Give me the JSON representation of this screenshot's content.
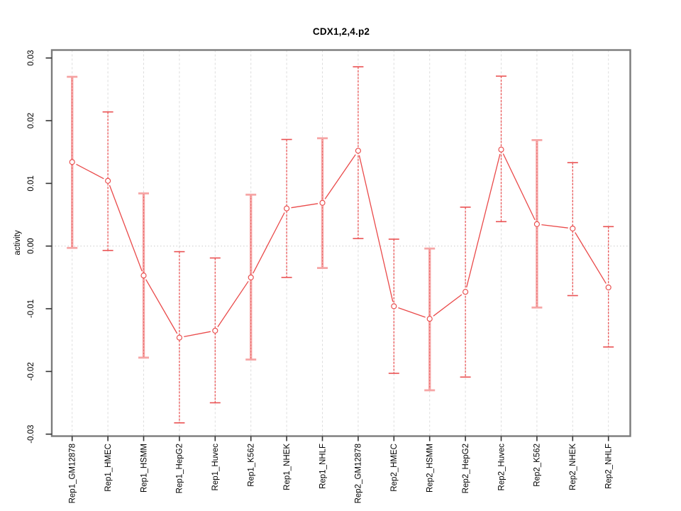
{
  "chart_data": {
    "type": "scatter",
    "title": "CDX1,2,4.p2",
    "xlabel": "",
    "ylabel": "activity",
    "ylim": [
      -0.03,
      0.03
    ],
    "ytick_values": [
      0.03,
      0.02,
      0.01,
      0,
      -0.01,
      -0.02,
      -0.03
    ],
    "ytick_labels": [
      "0.03",
      "0.02",
      "0.01",
      "0.00",
      "-0.01",
      "-0.02",
      "-0.03"
    ],
    "grid": {
      "vertical": "dashed-light-gray",
      "horizontal": "dotted-at-zero-only"
    },
    "legend_position": "none",
    "categories": [
      "Rep1_GM12878",
      "Rep1_HMEC",
      "Rep1_HSMM",
      "Rep1_HepG2",
      "Rep1_Huvec",
      "Rep1_K562",
      "Rep1_NHEK",
      "Rep1_NHLF",
      "Rep2_GM12878",
      "Rep2_HMEC",
      "Rep2_HSMM",
      "Rep2_HepG2",
      "Rep2_Huvec",
      "Rep2_K562",
      "Rep2_NHEK",
      "Rep2_NHLF"
    ],
    "series": [
      {
        "name": "activity",
        "means": [
          0.0134,
          0.0104,
          -0.0047,
          -0.0146,
          -0.0135,
          -0.005,
          0.006,
          0.0069,
          0.0152,
          -0.0096,
          -0.0116,
          -0.0073,
          0.0154,
          0.0035,
          0.0028,
          -0.0066
        ],
        "ci_high": [
          0.027,
          0.0214,
          0.0084,
          -0.0009,
          -0.0019,
          0.0082,
          0.017,
          0.0172,
          0.0286,
          0.0011,
          -0.0004,
          0.0062,
          0.0271,
          0.0169,
          0.0133,
          0.0031
        ],
        "ci_low": [
          -0.0003,
          -0.0007,
          -0.0178,
          -0.0282,
          -0.025,
          -0.0181,
          -0.005,
          -0.0035,
          0.0012,
          -0.0203,
          -0.023,
          -0.0209,
          0.0039,
          -0.0098,
          -0.0079,
          -0.0161
        ]
      }
    ],
    "error_bar_styles": [
      "thick",
      "thin",
      "thick",
      "thin",
      "thin",
      "thick",
      "thin",
      "thick",
      "thin",
      "thin",
      "thick",
      "thin",
      "thin",
      "thick",
      "thin",
      "thin"
    ],
    "colors": {
      "point": "#e94c4c",
      "line": "#ea4a4a",
      "error_thin": "#ea5152",
      "error_thick": "#f6a6a6",
      "error_thick_core": "#e96b6b",
      "grid": "#dcdcdc",
      "zero_line": "#c9c9c9",
      "box": "#7b7b7b",
      "tick": "#333333",
      "text": "#000000"
    }
  }
}
